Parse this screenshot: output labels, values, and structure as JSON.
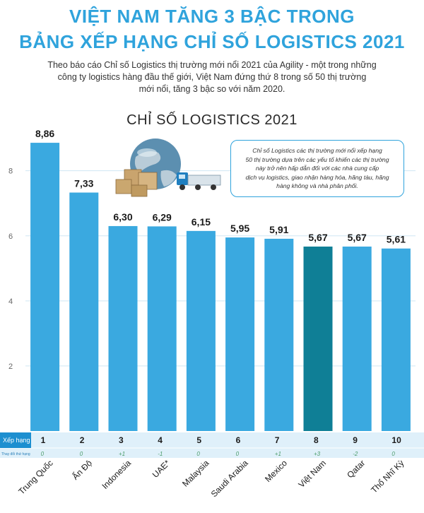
{
  "header": {
    "title_line1": "VIỆT NAM TĂNG 3 BẬC TRONG",
    "title_line2": "BẢNG XẾP HẠNG CHỈ SỐ LOGISTICS 2021",
    "intro_line1": "Theo báo cáo Chỉ số Logistics thị trường mới nổi 2021 của Agility - một trong những",
    "intro_line2": "công ty logistics hàng đầu thế giới, Việt Nam đứng thứ 8 trong số 50 thị trường",
    "intro_line3": "mới nổi, tăng 3 bậc so với năm 2020."
  },
  "callout": {
    "line1": "Chỉ số Logistics các thị trường mới nổi xếp hạng",
    "line2": "50 thị trường dựa trên các yếu tố khiến các thị trường",
    "line3": "này trở nên hấp dẫn đối với các nhà cung cấp",
    "line4": "dịch vụ logistics, giao nhận hàng hóa, hãng tàu, hãng",
    "line5": "hàng không và nhà phân phối."
  },
  "colors": {
    "bar": "#3aa9e0",
    "highlight": "#0f7f96",
    "title": "#2fa3dc",
    "rank_header": "#1d8fd0",
    "row_bg": "#dff0fa",
    "gridline": "#cfe6f3"
  },
  "chart_data": {
    "type": "bar",
    "title": "CHỈ SỐ LOGISTICS 2021",
    "xlabel": "",
    "ylabel": "",
    "ylim": [
      0,
      9.6
    ],
    "yticks": [
      2,
      4,
      6,
      8
    ],
    "categories": [
      "Trung Quốc",
      "Ấn Độ",
      "Indonesia",
      "UAE*",
      "Malaysia",
      "Saudi Arabia",
      "Mexico",
      "Việt Nam",
      "Qatar",
      "Thổ Nhĩ Kỳ"
    ],
    "values": [
      8.86,
      7.33,
      6.3,
      6.29,
      6.15,
      5.95,
      5.91,
      5.67,
      5.67,
      5.61
    ],
    "value_labels": [
      "8,86",
      "7,33",
      "6,30",
      "6,29",
      "6,15",
      "5,95",
      "5,91",
      "5,67",
      "5,67",
      "5,61"
    ],
    "highlight": "Việt Nam",
    "rank_label": "Xếp hạng",
    "change_label": "Thay đổi thứ hạng",
    "ranks": [
      "1",
      "2",
      "3",
      "4",
      "5",
      "6",
      "7",
      "8",
      "9",
      "10"
    ],
    "changes": [
      "0",
      "0",
      "+1",
      "-1",
      "0",
      "0",
      "+1",
      "+3",
      "-2",
      "0"
    ]
  }
}
